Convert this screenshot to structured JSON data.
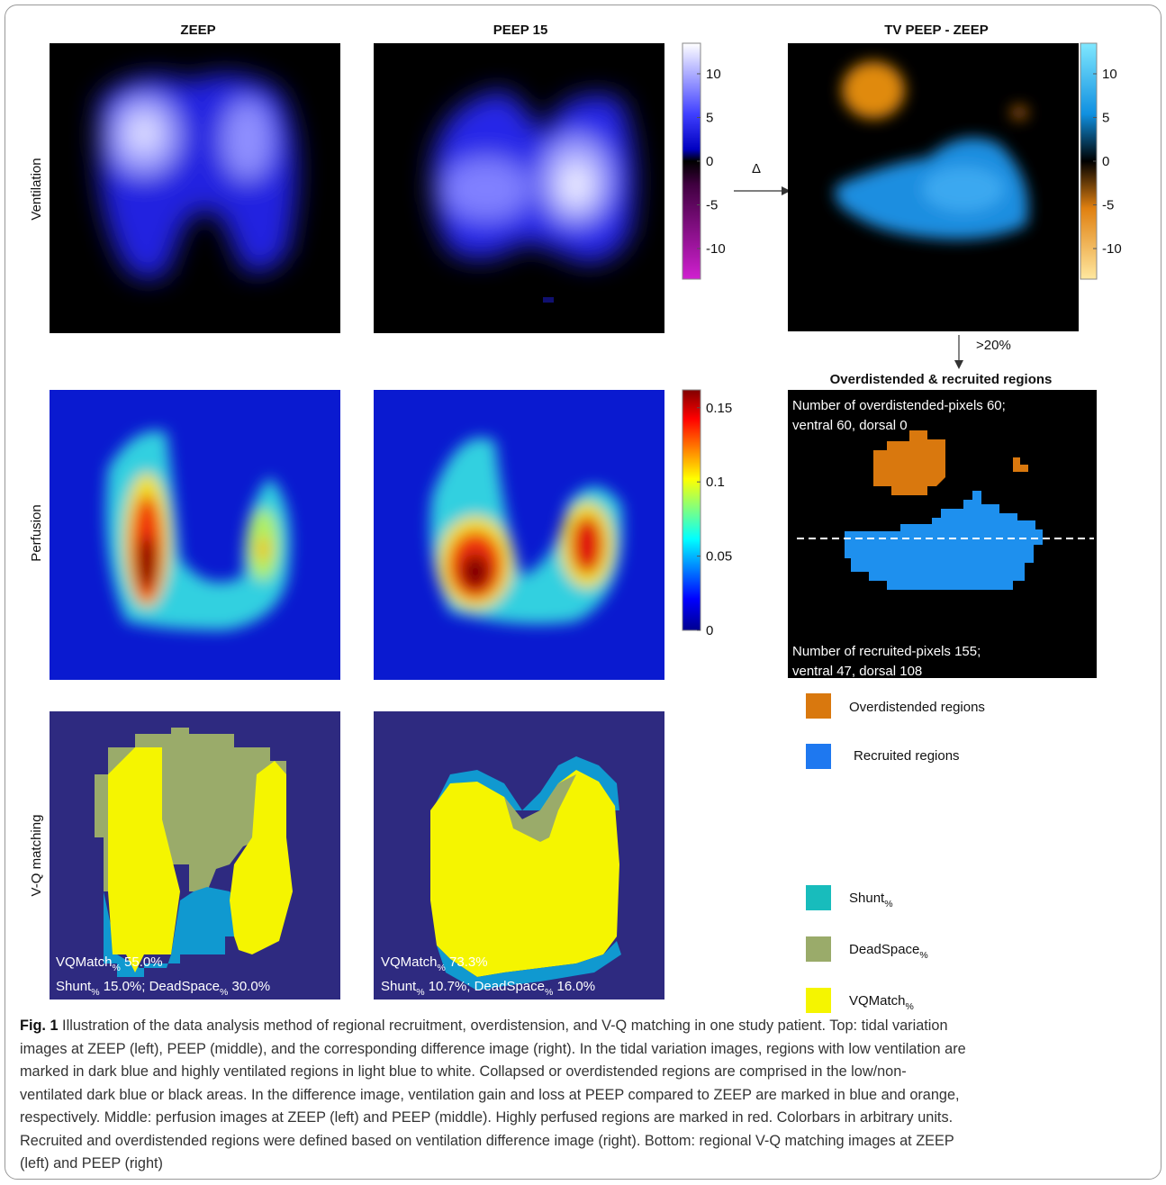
{
  "columns": {
    "zeep": "ZEEP",
    "peep": "PEEP 15",
    "diff": "TV PEEP - ZEEP"
  },
  "row_labels": [
    "Ventilation",
    "Perfusion",
    "V-Q matching"
  ],
  "colorbars": {
    "ventilation": {
      "lim": [
        -13.5,
        13.5
      ],
      "ticks": [
        10,
        5,
        0,
        -5,
        -10
      ]
    },
    "difference": {
      "lim": [
        -13.5,
        13.5
      ],
      "ticks": [
        10,
        5,
        0,
        -5,
        -10
      ]
    },
    "perfusion": {
      "lim": [
        0,
        0.162
      ],
      "ticks": [
        0.15,
        0.1,
        0.05,
        0
      ]
    }
  },
  "arrows": {
    "delta": "Δ",
    "threshold": ">20%"
  },
  "regions_panel": {
    "title": "Overdistended & recruited regions",
    "top_lines": [
      "Number of overdistended-pixels 60;",
      "ventral 60, dorsal 0"
    ],
    "bottom_lines": [
      "Number of recruited-pixels 155;",
      "ventral 47, dorsal 108"
    ]
  },
  "legend_regions": [
    "Overdistended regions",
    "Recruited regions"
  ],
  "legend_vq": [
    [
      {
        "t": "Shunt"
      },
      {
        "sub": "%"
      }
    ],
    [
      {
        "t": "DeadSpace"
      },
      {
        "sub": "%"
      }
    ],
    [
      {
        "t": "VQMatch"
      },
      {
        "sub": "%"
      }
    ]
  ],
  "vq_text": {
    "zeep": [
      [
        {
          "t": "VQMatch"
        },
        {
          "sub": "%"
        },
        {
          "t": " 55.0%"
        }
      ],
      [
        {
          "t": "Shunt"
        },
        {
          "sub": "%"
        },
        {
          "t": " 15.0%; DeadSpace"
        },
        {
          "sub": "%"
        },
        {
          "t": " 30.0%"
        }
      ]
    ],
    "peep": [
      [
        {
          "t": "VQMatch"
        },
        {
          "sub": "%"
        },
        {
          "t": " 73.3%"
        }
      ],
      [
        {
          "t": "Shunt"
        },
        {
          "sub": "%"
        },
        {
          "t": " 10.7%; DeadSpace"
        },
        {
          "sub": "%"
        },
        {
          "t": " 16.0%"
        }
      ]
    ]
  },
  "caption": {
    "label": "Fig. 1",
    "lines": [
      " Illustration of the data analysis method of regional recruitment, overdistension, and V-Q matching in one study patient. Top: tidal variation",
      "images at ZEEP (left), PEEP (middle), and the corresponding difference image (right). In the tidal variation images, regions with low ventilation are",
      "marked in dark blue and highly ventilated regions in light blue to white. Collapsed or overdistended regions are comprised in the low/non-",
      "ventilated dark blue or black areas. In the difference image, ventilation gain and loss at PEEP compared to ZEEP are marked in blue and orange,",
      "respectively. Middle: perfusion images at ZEEP (left) and PEEP (middle). Highly perfused regions are marked in red. Colorbars in arbitrary units.",
      "Recruited and overdistended regions were defined based on ventilation difference image (right). Bottom: regional V-Q matching images at ZEEP",
      "(left) and PEEP (right)"
    ]
  }
}
